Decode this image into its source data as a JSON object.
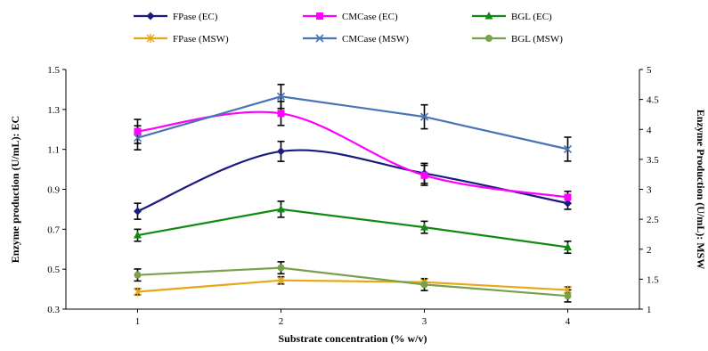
{
  "chart_data": {
    "type": "line",
    "title": "",
    "xlabel": "Substrate concentration (% w/v)",
    "ylabel": "Enzyme production (U/mL): EC",
    "y2label": "Enzyme Production (U/mL): MSW",
    "x": [
      1,
      2,
      3,
      4
    ],
    "xticks": [
      "1",
      "2",
      "3",
      "4"
    ],
    "ylim": [
      0.3,
      1.5
    ],
    "yticks": [
      "0.3",
      "0.5",
      "0.7",
      "0.9",
      "1.1",
      "1.3",
      "1.5"
    ],
    "y2lim": [
      1,
      5
    ],
    "y2ticks": [
      "1",
      "1.5",
      "2",
      "2.5",
      "3",
      "3.5",
      "4",
      "4.5",
      "5"
    ],
    "legend_position": "top",
    "grid": false,
    "series": [
      {
        "name": "FPase (EC)",
        "axis": "left",
        "color": "#1a1a80",
        "marker": "diamond",
        "smooth": true,
        "values": [
          0.79,
          1.09,
          0.98,
          0.83
        ],
        "errors": [
          0.04,
          0.05,
          0.05,
          0.03
        ]
      },
      {
        "name": "CMCase (EC)",
        "axis": "left",
        "color": "#ff00ff",
        "marker": "square",
        "smooth": true,
        "values": [
          1.19,
          1.28,
          0.97,
          0.86
        ],
        "errors": [
          0.06,
          0.06,
          0.05,
          0.03
        ]
      },
      {
        "name": "BGL (EC)",
        "axis": "left",
        "color": "#128a12",
        "marker": "triangle",
        "smooth": false,
        "values": [
          0.67,
          0.8,
          0.71,
          0.61
        ],
        "errors": [
          0.03,
          0.04,
          0.03,
          0.03
        ]
      },
      {
        "name": "FPase (MSW)",
        "axis": "right",
        "color": "#e6a817",
        "marker": "star",
        "smooth": false,
        "values": [
          1.29,
          1.48,
          1.45,
          1.32
        ],
        "errors": [
          0.05,
          0.06,
          0.05,
          0.05
        ]
      },
      {
        "name": "CMCase (MSW)",
        "axis": "right",
        "color": "#4a74b8",
        "marker": "x",
        "smooth": false,
        "values": [
          3.86,
          4.55,
          4.21,
          3.67
        ],
        "errors": [
          0.2,
          0.2,
          0.2,
          0.2
        ]
      },
      {
        "name": "BGL (MSW)",
        "axis": "right",
        "color": "#77a14a",
        "marker": "circle",
        "smooth": false,
        "values": [
          1.57,
          1.69,
          1.41,
          1.22
        ],
        "errors": [
          0.1,
          0.1,
          0.1,
          0.1
        ]
      }
    ],
    "error_bar_color": "#000000"
  }
}
